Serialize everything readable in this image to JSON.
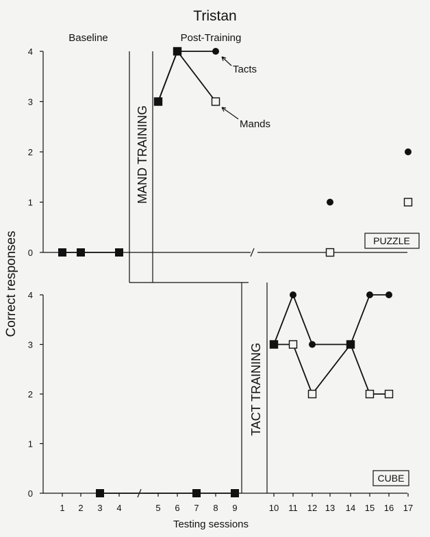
{
  "chart_data": {
    "type": "line",
    "title": "Tristan",
    "xlabel": "Testing sessions",
    "ylabel": "Correct responses",
    "x_ticks": [
      1,
      2,
      3,
      4,
      5,
      6,
      7,
      8,
      9,
      10,
      11,
      12,
      13,
      14,
      15,
      16,
      17
    ],
    "y_ticks": [
      0,
      1,
      2,
      3,
      4
    ],
    "ylim": [
      0,
      4
    ],
    "phase_labels": {
      "baseline": "Baseline",
      "post_training": "Post-Training"
    },
    "training_labels": {
      "mand": "MAND TRAINING",
      "tact": "TACT TRAINING"
    },
    "annotations": {
      "tacts": "Tacts",
      "mands": "Mands"
    },
    "panels": [
      {
        "name": "PUZZLE",
        "series": [
          {
            "name": "Tacts",
            "marker": "filled-circle",
            "segments": [
              [
                [
                  5,
                  3
                ],
                [
                  6,
                  4
                ],
                [
                  8,
                  4
                ]
              ],
              [
                [
                  13,
                  1
                ]
              ],
              [
                [
                  17,
                  2
                ]
              ]
            ]
          },
          {
            "name": "Mands",
            "marker": "open-square",
            "segments": [
              [
                [
                  5,
                  3
                ],
                [
                  6,
                  4
                ],
                [
                  8,
                  3
                ]
              ],
              [
                [
                  13,
                  0
                ]
              ],
              [
                [
                  17,
                  1
                ]
              ]
            ]
          }
        ],
        "baseline_both": {
          "marker": "filled-square",
          "segments": [
            [
              [
                1,
                0
              ],
              [
                2,
                0
              ],
              [
                4,
                0
              ]
            ]
          ]
        }
      },
      {
        "name": "CUBE",
        "series": [
          {
            "name": "Tacts",
            "marker": "filled-circle",
            "segments": [
              [
                [
                  10,
                  3
                ],
                [
                  11,
                  4
                ],
                [
                  12,
                  3
                ],
                [
                  14,
                  3
                ],
                [
                  15,
                  4
                ],
                [
                  16,
                  4
                ]
              ]
            ]
          },
          {
            "name": "Mands",
            "marker": "open-square",
            "segments": [
              [
                [
                  10,
                  3
                ],
                [
                  11,
                  3
                ],
                [
                  12,
                  2
                ],
                [
                  14,
                  3
                ],
                [
                  15,
                  2
                ],
                [
                  16,
                  2
                ]
              ]
            ]
          }
        ],
        "baseline_both": {
          "marker": "filled-square",
          "segments": [
            [
              [
                3,
                0
              ],
              [
                7,
                0
              ],
              [
                9,
                0
              ]
            ]
          ]
        }
      }
    ]
  }
}
